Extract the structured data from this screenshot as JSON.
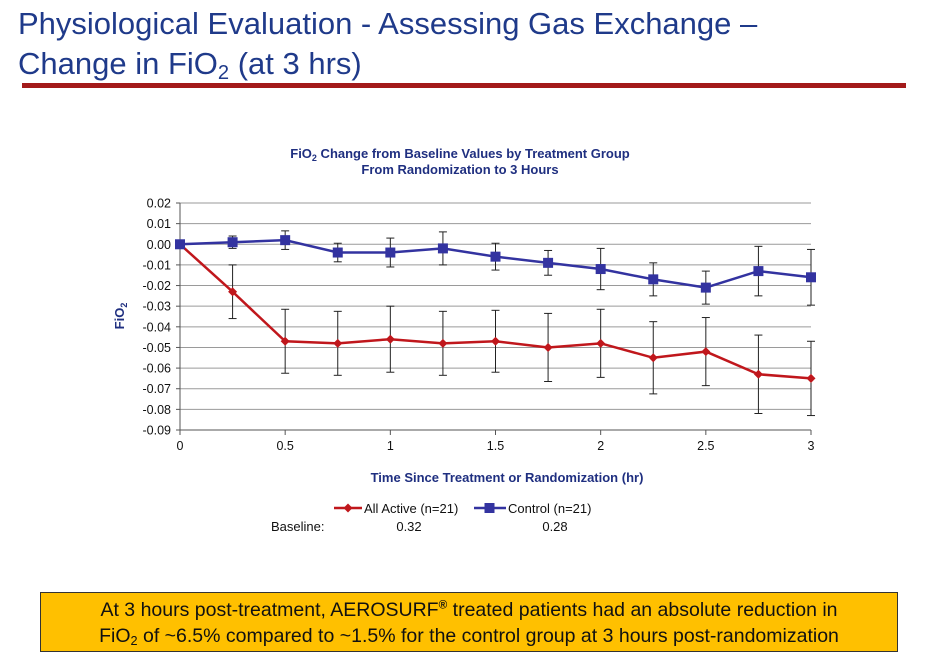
{
  "slide": {
    "title_line1": "Physiological Evaluation - Assessing Gas Exchange –",
    "title_line2_pre": "Change in FiO",
    "title_line2_sub": "2",
    "title_line2_post": " (at 3 hrs)"
  },
  "chart_data": {
    "type": "line",
    "title_line1_pre": "FiO",
    "title_line1_sub": "2",
    "title_line1_post": " Change from Baseline Values by Treatment Group",
    "title_line2": "From Randomization to 3 Hours",
    "xlabel": "Time Since Treatment or Randomization (hr)",
    "ylabel_pre": "FiO",
    "ylabel_sub": "2",
    "xlim": [
      0,
      3
    ],
    "ylim": [
      -0.09,
      0.02
    ],
    "x_ticks": [
      0,
      0.5,
      1,
      1.5,
      2,
      2.5,
      3
    ],
    "x_tick_labels": [
      "0",
      "0.5",
      "1",
      "1.5",
      "2",
      "2.5",
      "3"
    ],
    "y_ticks": [
      0.02,
      0.01,
      0,
      -0.01,
      -0.02,
      -0.03,
      -0.04,
      -0.05,
      -0.06,
      -0.07,
      -0.08,
      -0.09
    ],
    "y_tick_labels": [
      "0.02",
      "0.01",
      "0.00",
      "-0.01",
      "-0.02",
      "-0.03",
      "-0.04",
      "-0.05",
      "-0.06",
      "-0.07",
      "-0.08",
      "-0.09"
    ],
    "grid": true,
    "legend_position": "bottom",
    "series": [
      {
        "name": "All Active (n=21)",
        "color": "#c0171c",
        "marker": "diamond",
        "x": [
          0,
          0.25,
          0.5,
          0.75,
          1,
          1.25,
          1.5,
          1.75,
          2,
          2.25,
          2.5,
          2.75,
          3
        ],
        "y": [
          0,
          -0.023,
          -0.047,
          -0.048,
          -0.046,
          -0.048,
          -0.047,
          -0.05,
          -0.048,
          -0.055,
          -0.052,
          -0.063,
          -0.065
        ],
        "err": [
          0,
          0.013,
          0.0155,
          0.0155,
          0.016,
          0.0155,
          0.015,
          0.0165,
          0.0165,
          0.0175,
          0.0165,
          0.019,
          0.018
        ]
      },
      {
        "name": "Control (n=21)",
        "color": "#3333a0",
        "marker": "square",
        "x": [
          0,
          0.25,
          0.5,
          0.75,
          1,
          1.25,
          1.5,
          1.75,
          2,
          2.25,
          2.5,
          2.75,
          3
        ],
        "y": [
          0,
          0.001,
          0.002,
          -0.004,
          -0.004,
          -0.002,
          -0.006,
          -0.009,
          -0.012,
          -0.017,
          -0.021,
          -0.013,
          -0.016
        ],
        "err": [
          0,
          0.003,
          0.0045,
          0.0045,
          0.007,
          0.008,
          0.0065,
          0.006,
          0.01,
          0.008,
          0.008,
          0.012,
          0.0135
        ]
      }
    ],
    "baseline_label": "Baseline:",
    "baseline_values": [
      "0.32",
      "0.28"
    ]
  },
  "callout": {
    "line1_pre": "At 3 hours post-treatment, AEROSURF",
    "line1_sup": "®",
    "line1_post": " treated patients had an absolute reduction in",
    "line2_pre": "FiO",
    "line2_sub": "2",
    "line2_post": " of ~6.5% compared to ~1.5% for the control group at 3 hours post-randomization"
  }
}
